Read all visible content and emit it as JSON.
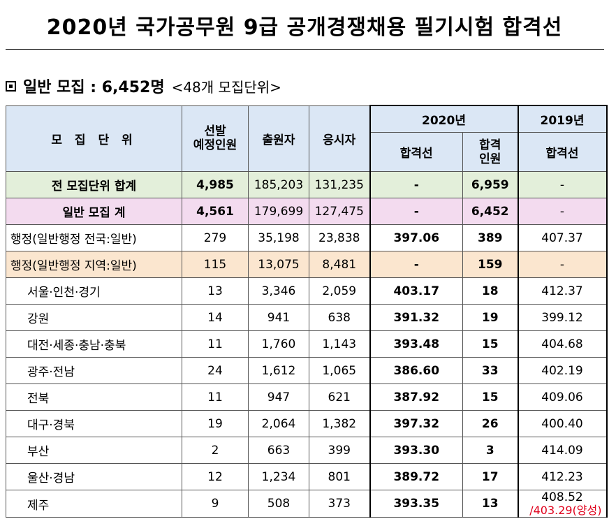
{
  "document": {
    "title": "2020년 국가공무원 9급 공개경쟁채용 필기시험 합격선",
    "section_label": "일반 모집 : 6,452명",
    "section_sub": "<48개 모집단위>"
  },
  "columns": {
    "unit": "모 집 단 위",
    "planned": "선발\n예정인원",
    "applicants": "출원자",
    "examinees": "응시자",
    "year_2020": "2020년",
    "year_2019": "2019년",
    "cutoff_2020": "합격선",
    "passed_2020": "합격\n인원",
    "cutoff_2019": "합격선"
  },
  "rows": [
    {
      "unit": "전 모집단위 합계",
      "planned": "4,985",
      "applicants": "185,203",
      "examinees": "131,235",
      "cutoff_2020": "-",
      "passed_2020": "6,959",
      "cutoff_2019": "-"
    },
    {
      "unit": "일반 모집 계",
      "planned": "4,561",
      "applicants": "179,699",
      "examinees": "127,475",
      "cutoff_2020": "-",
      "passed_2020": "6,452",
      "cutoff_2019": "-"
    },
    {
      "unit": "행정(일반행정 전국:일반)",
      "planned": "279",
      "applicants": "35,198",
      "examinees": "23,838",
      "cutoff_2020": "397.06",
      "passed_2020": "389",
      "cutoff_2019": "407.37"
    },
    {
      "unit": "행정(일반행정 지역:일반)",
      "planned": "115",
      "applicants": "13,075",
      "examinees": "8,481",
      "cutoff_2020": "-",
      "passed_2020": "159",
      "cutoff_2019": "-"
    },
    {
      "unit": "서울·인천·경기",
      "planned": "13",
      "applicants": "3,346",
      "examinees": "2,059",
      "cutoff_2020": "403.17",
      "passed_2020": "18",
      "cutoff_2019": "412.37"
    },
    {
      "unit": "강원",
      "planned": "14",
      "applicants": "941",
      "examinees": "638",
      "cutoff_2020": "391.32",
      "passed_2020": "19",
      "cutoff_2019": "399.12"
    },
    {
      "unit": "대전·세종·충남·충북",
      "planned": "11",
      "applicants": "1,760",
      "examinees": "1,143",
      "cutoff_2020": "393.48",
      "passed_2020": "15",
      "cutoff_2019": "404.68"
    },
    {
      "unit": "광주·전남",
      "planned": "24",
      "applicants": "1,612",
      "examinees": "1,065",
      "cutoff_2020": "386.60",
      "passed_2020": "33",
      "cutoff_2019": "402.19"
    },
    {
      "unit": "전북",
      "planned": "11",
      "applicants": "947",
      "examinees": "621",
      "cutoff_2020": "387.92",
      "passed_2020": "15",
      "cutoff_2019": "409.06"
    },
    {
      "unit": "대구·경북",
      "planned": "19",
      "applicants": "2,064",
      "examinees": "1,382",
      "cutoff_2020": "397.32",
      "passed_2020": "26",
      "cutoff_2019": "400.40"
    },
    {
      "unit": "부산",
      "planned": "2",
      "applicants": "663",
      "examinees": "399",
      "cutoff_2020": "393.30",
      "passed_2020": "3",
      "cutoff_2019": "414.09"
    },
    {
      "unit": "울산·경남",
      "planned": "12",
      "applicants": "1,234",
      "examinees": "801",
      "cutoff_2020": "389.72",
      "passed_2020": "17",
      "cutoff_2019": "412.23"
    },
    {
      "unit": "제주",
      "planned": "9",
      "applicants": "508",
      "examinees": "373",
      "cutoff_2020": "393.35",
      "passed_2020": "13",
      "cutoff_2019": "408.52",
      "cutoff_2019_note": "/403.29(양성)"
    }
  ]
}
